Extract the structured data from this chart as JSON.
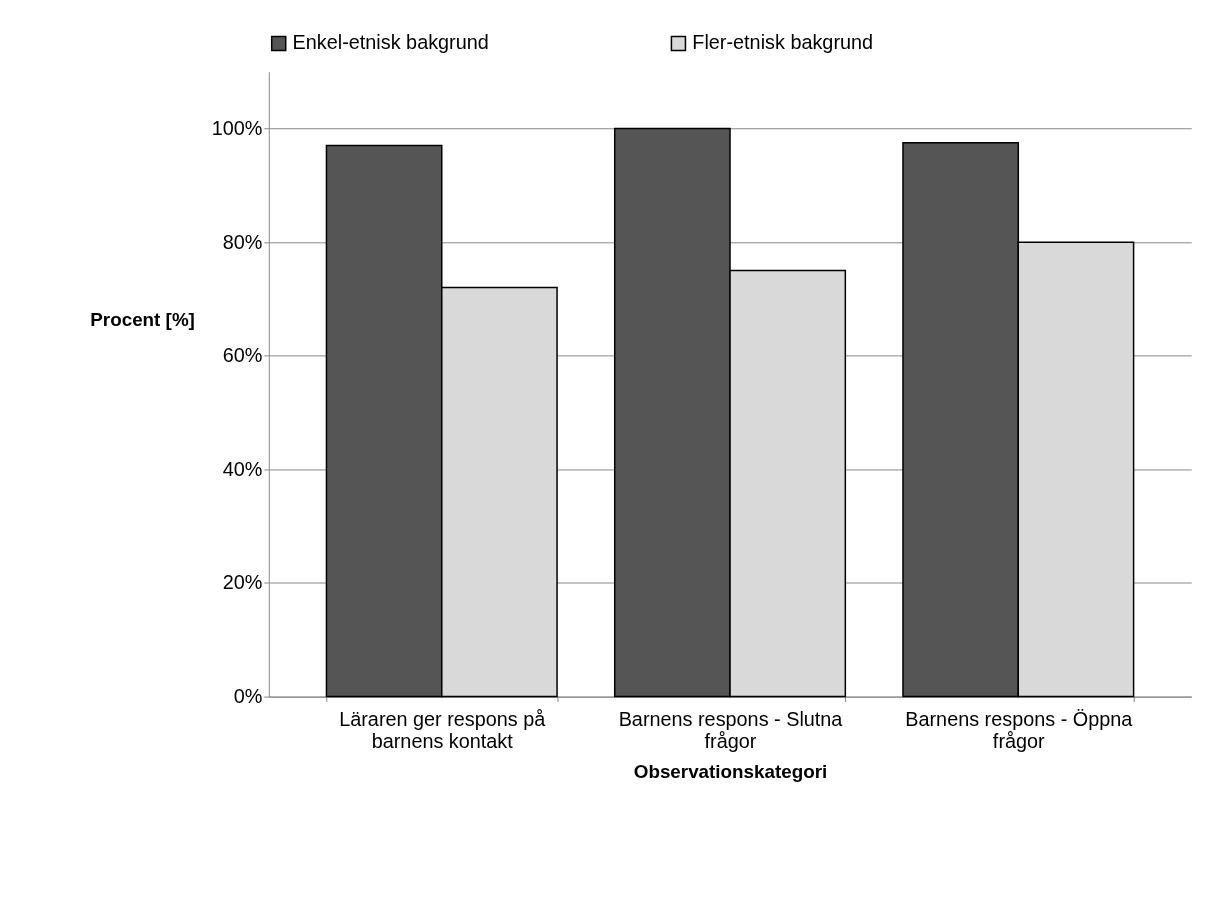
{
  "chart_data": {
    "type": "bar",
    "xlabel": "Observationskategori",
    "ylabel": "Procent [%]",
    "categories": [
      "Läraren ger respons på barnens kontakt",
      "Barnens respons - Slutna frågor",
      "Barnens respons - Öppna frågor"
    ],
    "series": [
      {
        "name": "Enkel-etnisk bakgrund",
        "color": "#555555",
        "values": [
          97,
          100,
          97.5
        ]
      },
      {
        "name": "Fler-etnisk bakgrund",
        "color": "#d9d9d9",
        "values": [
          72,
          75,
          80
        ]
      }
    ],
    "ylim": [
      0,
      110
    ],
    "yticks": [
      {
        "value": 0,
        "label": "0%"
      },
      {
        "value": 20,
        "label": "20%"
      },
      {
        "value": 40,
        "label": "40%"
      },
      {
        "value": 60,
        "label": "60%"
      },
      {
        "value": 80,
        "label": "80%"
      },
      {
        "value": 100,
        "label": "100%"
      }
    ],
    "grid": "y",
    "legend": "top"
  }
}
